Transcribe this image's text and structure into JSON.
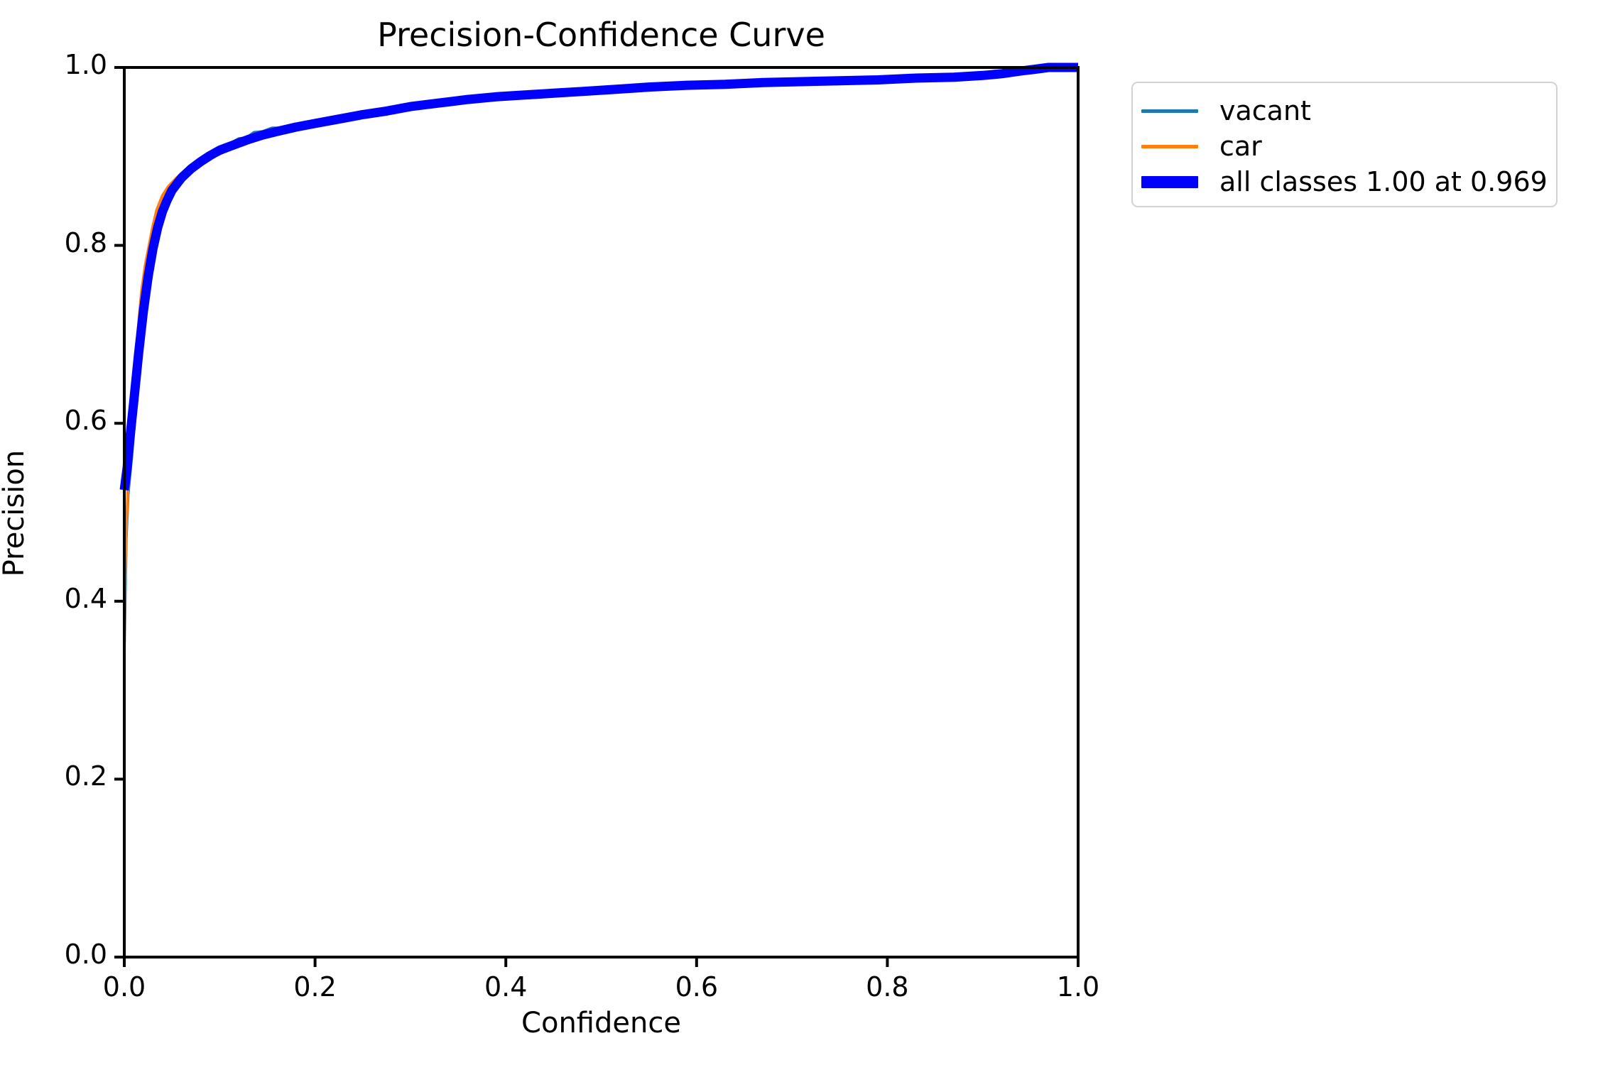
{
  "figure": {
    "background": "#ffffff",
    "axes_color": "#000000",
    "legend_border_color": "#d2d2d2"
  },
  "chart_data": {
    "type": "line",
    "title": "Precision-Confidence Curve",
    "xlabel": "Confidence",
    "ylabel": "Precision",
    "xlim": [
      0.0,
      1.0
    ],
    "ylim": [
      0.0,
      1.0
    ],
    "x_ticks": [
      "0.0",
      "0.2",
      "0.4",
      "0.6",
      "0.8",
      "1.0"
    ],
    "y_ticks": [
      "0.0",
      "0.2",
      "0.4",
      "0.6",
      "0.8",
      "1.0"
    ],
    "grid": false,
    "legend_position": "upper right outside plot",
    "annotation": "all classes reach precision 1.00 at confidence 0.969",
    "series": [
      {
        "name": "vacant",
        "color": "#1f77b4",
        "linewidth": 4,
        "points": [
          [
            0.0,
            0.345
          ],
          [
            0.002,
            0.47
          ],
          [
            0.004,
            0.52
          ],
          [
            0.008,
            0.565
          ],
          [
            0.012,
            0.615
          ],
          [
            0.017,
            0.672
          ],
          [
            0.022,
            0.73
          ],
          [
            0.027,
            0.77
          ],
          [
            0.032,
            0.8
          ],
          [
            0.038,
            0.826
          ],
          [
            0.045,
            0.848
          ],
          [
            0.052,
            0.863
          ],
          [
            0.06,
            0.876
          ],
          [
            0.07,
            0.887
          ],
          [
            0.08,
            0.896
          ],
          [
            0.09,
            0.904
          ],
          [
            0.1,
            0.91
          ],
          [
            0.11,
            0.914
          ],
          [
            0.12,
            0.92
          ],
          [
            0.128,
            0.921
          ],
          [
            0.136,
            0.927
          ],
          [
            0.145,
            0.928
          ],
          [
            0.155,
            0.932
          ],
          [
            0.165,
            0.932
          ],
          [
            0.175,
            0.935
          ],
          [
            0.19,
            0.936
          ],
          [
            0.205,
            0.939
          ],
          [
            0.22,
            0.942
          ],
          [
            0.24,
            0.946
          ],
          [
            0.26,
            0.95
          ],
          [
            0.285,
            0.954
          ],
          [
            0.31,
            0.958
          ],
          [
            0.34,
            0.962
          ],
          [
            0.37,
            0.965
          ],
          [
            0.4,
            0.968
          ],
          [
            0.43,
            0.97
          ],
          [
            0.46,
            0.972
          ],
          [
            0.5,
            0.975
          ],
          [
            0.54,
            0.977
          ],
          [
            0.58,
            0.979
          ],
          [
            0.62,
            0.981
          ],
          [
            0.66,
            0.982
          ],
          [
            0.7,
            0.982
          ],
          [
            0.74,
            0.983
          ],
          [
            0.78,
            0.985
          ],
          [
            0.82,
            0.987
          ],
          [
            0.86,
            0.989
          ],
          [
            0.895,
            0.99
          ],
          [
            0.915,
            0.992
          ],
          [
            0.935,
            0.995
          ],
          [
            0.955,
            0.998
          ],
          [
            0.969,
            1.0
          ],
          [
            1.0,
            1.0
          ]
        ]
      },
      {
        "name": "car",
        "color": "#ff7f0e",
        "linewidth": 4,
        "points": [
          [
            0.0,
            0.39
          ],
          [
            0.002,
            0.48
          ],
          [
            0.004,
            0.53
          ],
          [
            0.007,
            0.585
          ],
          [
            0.01,
            0.64
          ],
          [
            0.014,
            0.7
          ],
          [
            0.018,
            0.748
          ],
          [
            0.022,
            0.778
          ],
          [
            0.026,
            0.8
          ],
          [
            0.03,
            0.822
          ],
          [
            0.034,
            0.84
          ],
          [
            0.04,
            0.856
          ],
          [
            0.046,
            0.866
          ],
          [
            0.054,
            0.875
          ],
          [
            0.062,
            0.882
          ],
          [
            0.072,
            0.889
          ],
          [
            0.082,
            0.894
          ],
          [
            0.092,
            0.899
          ],
          [
            0.105,
            0.905
          ],
          [
            0.12,
            0.912
          ],
          [
            0.135,
            0.917
          ],
          [
            0.15,
            0.922
          ],
          [
            0.165,
            0.926
          ],
          [
            0.18,
            0.93
          ],
          [
            0.2,
            0.934
          ],
          [
            0.225,
            0.94
          ],
          [
            0.25,
            0.946
          ],
          [
            0.28,
            0.952
          ],
          [
            0.31,
            0.957
          ],
          [
            0.34,
            0.962
          ],
          [
            0.365,
            0.965
          ],
          [
            0.39,
            0.968
          ],
          [
            0.42,
            0.97
          ],
          [
            0.45,
            0.972
          ],
          [
            0.48,
            0.973
          ],
          [
            0.51,
            0.975
          ],
          [
            0.545,
            0.977
          ],
          [
            0.58,
            0.978
          ],
          [
            0.615,
            0.98
          ],
          [
            0.65,
            0.981
          ],
          [
            0.68,
            0.984
          ],
          [
            0.7,
            0.986
          ],
          [
            0.72,
            0.986
          ],
          [
            0.74,
            0.984
          ],
          [
            0.77,
            0.985
          ],
          [
            0.8,
            0.987
          ],
          [
            0.83,
            0.988
          ],
          [
            0.86,
            0.989
          ],
          [
            0.885,
            0.99
          ],
          [
            0.905,
            0.99
          ],
          [
            0.918,
            0.992
          ],
          [
            0.928,
            0.991
          ],
          [
            0.94,
            0.995
          ],
          [
            0.955,
            0.998
          ],
          [
            0.969,
            1.0
          ],
          [
            1.0,
            1.0
          ]
        ]
      },
      {
        "name": "all classes 1.00 at 0.969",
        "color": "#0000ff",
        "linewidth": 13,
        "points": [
          [
            0.0,
            0.525
          ],
          [
            0.003,
            0.55
          ],
          [
            0.006,
            0.585
          ],
          [
            0.01,
            0.625
          ],
          [
            0.015,
            0.678
          ],
          [
            0.02,
            0.726
          ],
          [
            0.025,
            0.765
          ],
          [
            0.03,
            0.796
          ],
          [
            0.035,
            0.82
          ],
          [
            0.04,
            0.838
          ],
          [
            0.045,
            0.851
          ],
          [
            0.05,
            0.862
          ],
          [
            0.06,
            0.876
          ],
          [
            0.07,
            0.886
          ],
          [
            0.08,
            0.894
          ],
          [
            0.09,
            0.901
          ],
          [
            0.1,
            0.907
          ],
          [
            0.115,
            0.913
          ],
          [
            0.13,
            0.919
          ],
          [
            0.145,
            0.924
          ],
          [
            0.16,
            0.928
          ],
          [
            0.18,
            0.933
          ],
          [
            0.2,
            0.937
          ],
          [
            0.225,
            0.942
          ],
          [
            0.25,
            0.947
          ],
          [
            0.275,
            0.951
          ],
          [
            0.3,
            0.956
          ],
          [
            0.33,
            0.96
          ],
          [
            0.36,
            0.964
          ],
          [
            0.39,
            0.967
          ],
          [
            0.42,
            0.969
          ],
          [
            0.45,
            0.971
          ],
          [
            0.48,
            0.973
          ],
          [
            0.51,
            0.975
          ],
          [
            0.55,
            0.978
          ],
          [
            0.59,
            0.98
          ],
          [
            0.63,
            0.981
          ],
          [
            0.67,
            0.983
          ],
          [
            0.71,
            0.984
          ],
          [
            0.75,
            0.985
          ],
          [
            0.79,
            0.986
          ],
          [
            0.83,
            0.988
          ],
          [
            0.87,
            0.989
          ],
          [
            0.9,
            0.991
          ],
          [
            0.92,
            0.993
          ],
          [
            0.94,
            0.996
          ],
          [
            0.955,
            0.998
          ],
          [
            0.969,
            1.0
          ],
          [
            1.0,
            1.0
          ]
        ]
      }
    ]
  }
}
